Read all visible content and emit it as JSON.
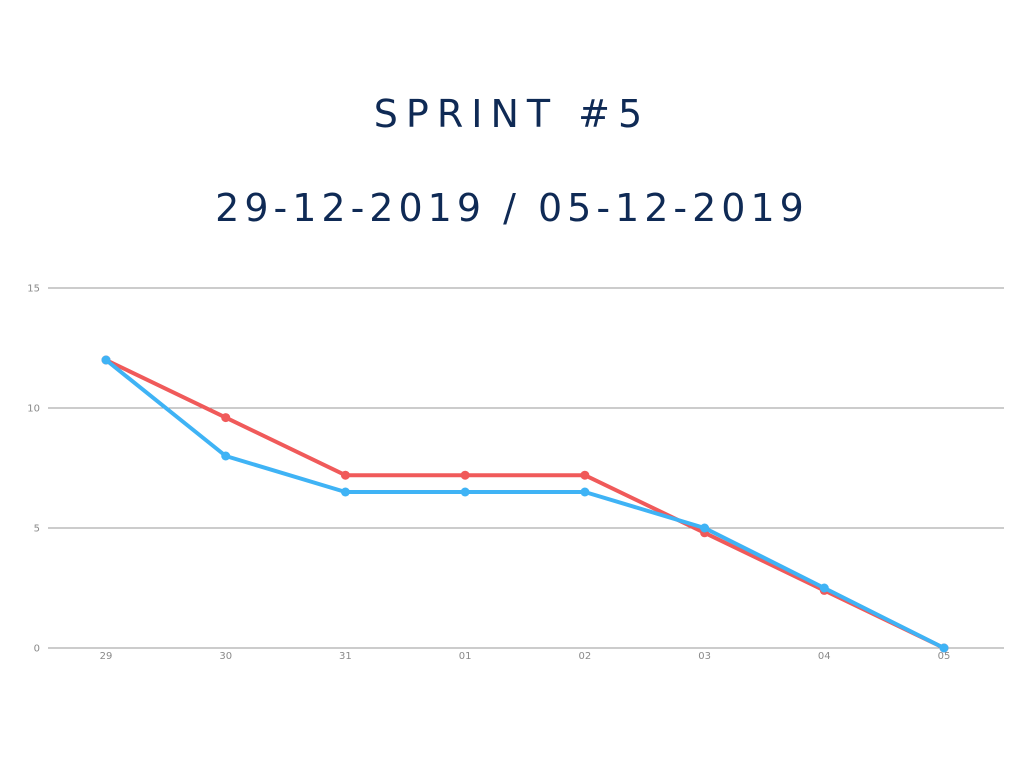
{
  "header": {
    "title": "SPRINT #5",
    "subtitle": "29-12-2019 / 05-12-2019"
  },
  "chart_data": {
    "type": "line",
    "title": "SPRINT #5",
    "subtitle": "29-12-2019 / 05-12-2019",
    "xlabel": "",
    "ylabel": "",
    "categories": [
      "29",
      "30",
      "31",
      "01",
      "02",
      "03",
      "04",
      "05"
    ],
    "yticks": [
      0,
      5,
      10,
      15
    ],
    "ylim": [
      0,
      15
    ],
    "grid": true,
    "legend": "none",
    "series": [
      {
        "color": "#f05a5a",
        "values": [
          12,
          9.6,
          7.2,
          7.2,
          7.2,
          4.8,
          2.4,
          0
        ]
      },
      {
        "color": "#3fb3f5",
        "values": [
          12,
          8,
          6.5,
          6.5,
          6.5,
          5,
          2.5,
          0
        ]
      }
    ]
  }
}
